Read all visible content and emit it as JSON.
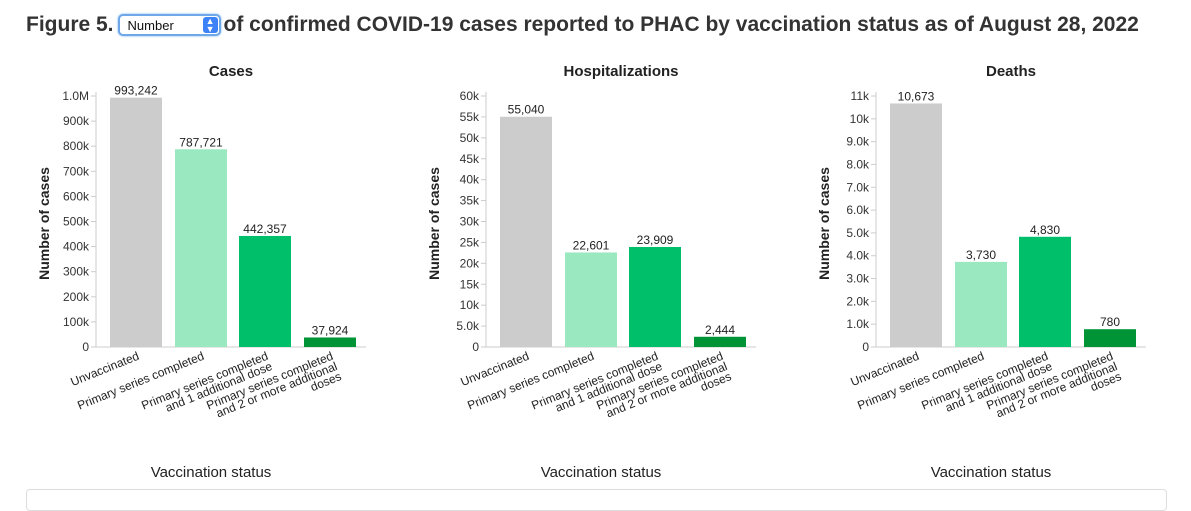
{
  "figure": {
    "label": "Figure 5.",
    "select_value": "Number",
    "title_rest": "of confirmed COVID-19 cases reported to PHAC by vaccination status as of August 28, 2022"
  },
  "chart_data": [
    {
      "type": "bar",
      "title": "Cases",
      "xlabel": "Vaccination status",
      "ylabel": "Number of cases",
      "categories": [
        "Unvaccinated",
        "Primary series completed",
        "Primary series completed and 1 additional dose",
        "Primary series completed and 2 or more additional doses"
      ],
      "category_lines": [
        [
          "Unvaccinated"
        ],
        [
          "Primary series completed"
        ],
        [
          "Primary series completed",
          "and 1 additional dose"
        ],
        [
          "Primary series completed",
          "and 2 or more additional",
          "doses"
        ]
      ],
      "values": [
        993242,
        787721,
        442357,
        37924
      ],
      "value_labels": [
        "993,242",
        "787,721",
        "442,357",
        "37,924"
      ],
      "colors": [
        "#cccccc",
        "#99e8c0",
        "#00bf6a",
        "#009436"
      ],
      "ylim": [
        0,
        1000000
      ],
      "ticks": [
        0,
        100000,
        200000,
        300000,
        400000,
        500000,
        600000,
        700000,
        800000,
        900000,
        1000000
      ],
      "tick_labels": [
        "0",
        "100k",
        "200k",
        "300k",
        "400k",
        "500k",
        "600k",
        "700k",
        "800k",
        "900k",
        "1.0M"
      ],
      "grid": false
    },
    {
      "type": "bar",
      "title": "Hospitalizations",
      "xlabel": "Vaccination status",
      "ylabel": "Number of cases",
      "categories": [
        "Unvaccinated",
        "Primary series completed",
        "Primary series completed and 1 additional dose",
        "Primary series completed and 2 or more additional doses"
      ],
      "category_lines": [
        [
          "Unvaccinated"
        ],
        [
          "Primary series completed"
        ],
        [
          "Primary series completed",
          "and 1 additional dose"
        ],
        [
          "Primary series completed",
          "and 2 or more additional",
          "doses"
        ]
      ],
      "values": [
        55040,
        22601,
        23909,
        2444
      ],
      "value_labels": [
        "55,040",
        "22,601",
        "23,909",
        "2,444"
      ],
      "colors": [
        "#cccccc",
        "#99e8c0",
        "#00bf6a",
        "#009436"
      ],
      "ylim": [
        0,
        60000
      ],
      "ticks": [
        0,
        5000,
        10000,
        15000,
        20000,
        25000,
        30000,
        35000,
        40000,
        45000,
        50000,
        55000,
        60000
      ],
      "tick_labels": [
        "0",
        "5.0k",
        "10k",
        "15k",
        "20k",
        "25k",
        "30k",
        "35k",
        "40k",
        "45k",
        "50k",
        "55k",
        "60k"
      ],
      "grid": false
    },
    {
      "type": "bar",
      "title": "Deaths",
      "xlabel": "Vaccination status",
      "ylabel": "Number of cases",
      "categories": [
        "Unvaccinated",
        "Primary series completed",
        "Primary series completed and 1 additional dose",
        "Primary series completed and 2 or more additional doses"
      ],
      "category_lines": [
        [
          "Unvaccinated"
        ],
        [
          "Primary series completed"
        ],
        [
          "Primary series completed",
          "and 1 additional dose"
        ],
        [
          "Primary series completed",
          "and 2 or more additional",
          "doses"
        ]
      ],
      "values": [
        10673,
        3730,
        4830,
        780
      ],
      "value_labels": [
        "10,673",
        "3,730",
        "4,830",
        "780"
      ],
      "colors": [
        "#cccccc",
        "#99e8c0",
        "#00bf6a",
        "#009436"
      ],
      "ylim": [
        0,
        11000
      ],
      "ticks": [
        0,
        1000,
        2000,
        3000,
        4000,
        5000,
        6000,
        7000,
        8000,
        9000,
        10000,
        11000
      ],
      "tick_labels": [
        "0",
        "1.0k",
        "2.0k",
        "3.0k",
        "4.0k",
        "5.0k",
        "6.0k",
        "7.0k",
        "8.0k",
        "9.0k",
        "10k",
        "11k"
      ],
      "grid": false
    }
  ]
}
